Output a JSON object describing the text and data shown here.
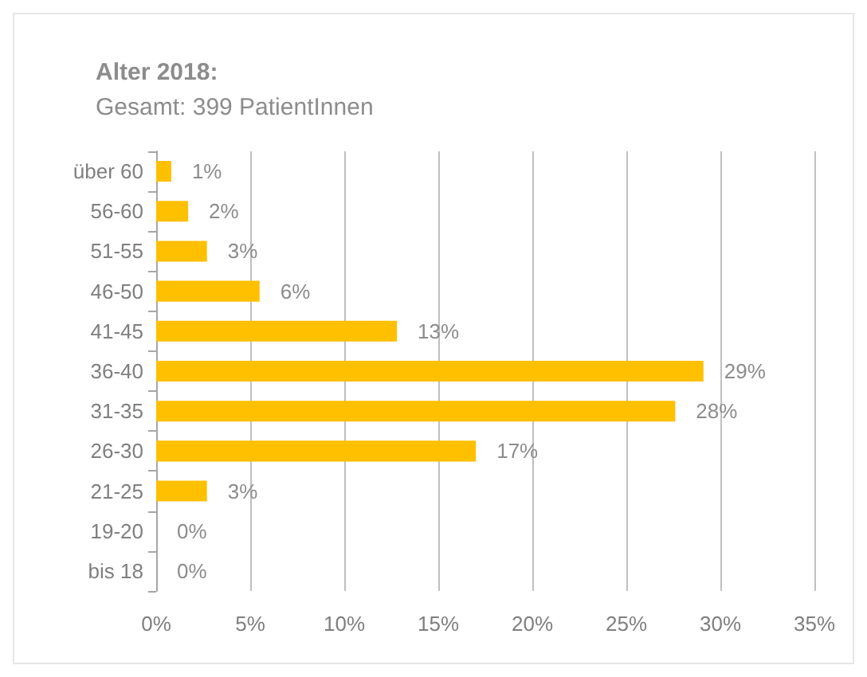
{
  "chart_data": {
    "type": "bar",
    "orientation": "horizontal",
    "title": "Alter 2018:",
    "subtitle": "Gesamt: 399 PatientInnen",
    "categories": [
      "über 60",
      "56-60",
      "51-55",
      "46-50",
      "41-45",
      "36-40",
      "31-35",
      "26-30",
      "21-25",
      "19-20",
      "bis 18"
    ],
    "values": [
      0.8,
      1.7,
      2.7,
      5.5,
      12.8,
      29.1,
      27.6,
      17.0,
      2.7,
      0,
      0
    ],
    "value_labels": [
      "1%",
      "2%",
      "3%",
      "6%",
      "13%",
      "29%",
      "28%",
      "17%",
      "3%",
      "0%",
      "0%"
    ],
    "color": "#ffc000",
    "xlim": [
      0,
      35
    ],
    "xticks": [
      {
        "value": 0,
        "label": "0%"
      },
      {
        "value": 5,
        "label": "5%"
      },
      {
        "value": 10,
        "label": "10%"
      },
      {
        "value": 15,
        "label": "15%"
      },
      {
        "value": 20,
        "label": "20%"
      },
      {
        "value": 25,
        "label": "25%"
      },
      {
        "value": 30,
        "label": "30%"
      },
      {
        "value": 35,
        "label": "35%"
      }
    ],
    "grid": "x"
  }
}
